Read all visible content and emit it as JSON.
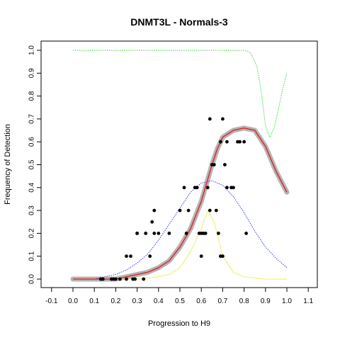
{
  "chart_data": {
    "type": "scatter",
    "title": "DNMT3L - Normals-3",
    "xlabel": "Progression to H9",
    "ylabel": "Frequency of Detection",
    "xlim": [
      -0.1,
      1.1
    ],
    "ylim": [
      0.0,
      1.0
    ],
    "x_ticks": [
      "-0.1",
      "0.0",
      "0.1",
      "0.2",
      "0.3",
      "0.4",
      "0.5",
      "0.6",
      "0.7",
      "0.8",
      "0.9",
      "1.0",
      "1.1"
    ],
    "y_ticks": [
      "0.0",
      "0.1",
      "0.2",
      "0.3",
      "0.4",
      "0.5",
      "0.6",
      "0.7",
      "0.8",
      "0.9",
      "1.0"
    ],
    "grid": false,
    "legend": "none",
    "colors": {
      "points": "#000000",
      "gray_band": "#b4b4b4",
      "red_fit": "#e41a1c",
      "blue_density": "#3333ff",
      "yellow_density": "#eeee66",
      "green_curve": "#33dd33"
    },
    "series": [
      {
        "type": "scatter",
        "x": [
          0.13,
          0.14,
          0.18,
          0.19,
          0.2,
          0.22,
          0.25,
          0.27,
          0.29,
          0.3,
          0.33,
          0.25,
          0.28,
          0.34,
          0.38,
          0.36,
          0.3,
          0.38,
          0.37,
          0.4,
          0.45,
          0.5,
          0.52,
          0.54,
          0.53,
          0.57,
          0.58,
          0.6,
          0.59,
          0.61,
          0.62,
          0.65,
          0.66,
          0.6,
          0.63,
          0.64,
          0.67,
          0.68,
          0.69,
          0.7,
          0.72,
          0.71,
          0.74,
          0.75,
          0.77,
          0.8,
          0.81,
          0.72,
          0.7,
          0.69,
          0.64,
          0.78
        ],
        "y": [
          0.0,
          0.0,
          0.0,
          0.0,
          0.0,
          0.0,
          0.1,
          0.1,
          0.0,
          0.2,
          0.0,
          0.0,
          0.0,
          0.2,
          0.3,
          0.1,
          0.2,
          0.2,
          0.25,
          0.2,
          0.2,
          0.3,
          0.4,
          0.3,
          0.2,
          0.4,
          0.4,
          0.2,
          0.2,
          0.2,
          0.2,
          0.5,
          0.5,
          0.1,
          0.4,
          0.3,
          0.3,
          0.2,
          0.1,
          0.1,
          0.4,
          0.5,
          0.4,
          0.4,
          0.6,
          0.6,
          0.2,
          0.6,
          0.7,
          0.6,
          0.7,
          0.6
        ]
      },
      {
        "type": "line",
        "x": [
          0.0,
          0.05,
          0.1,
          0.15,
          0.2,
          0.25,
          0.3,
          0.35,
          0.4,
          0.45,
          0.5,
          0.55,
          0.6,
          0.625,
          0.65,
          0.675,
          0.7,
          0.75,
          0.8,
          0.85,
          0.9,
          0.95,
          1.0
        ],
        "y": [
          0.0,
          0.0,
          0.0,
          0.0,
          0.0,
          0.01,
          0.02,
          0.03,
          0.05,
          0.08,
          0.14,
          0.22,
          0.34,
          0.42,
          0.5,
          0.57,
          0.62,
          0.65,
          0.66,
          0.65,
          0.58,
          0.47,
          0.38
        ]
      },
      {
        "type": "line",
        "x": [
          0.0,
          0.05,
          0.1,
          0.15,
          0.2,
          0.25,
          0.3,
          0.35,
          0.4,
          0.45,
          0.5,
          0.55,
          0.6,
          0.65,
          0.7,
          0.75,
          0.8,
          0.85,
          0.9,
          0.95,
          1.0
        ],
        "y": [
          0.0,
          0.0,
          0.0,
          0.01,
          0.02,
          0.04,
          0.07,
          0.11,
          0.17,
          0.24,
          0.31,
          0.38,
          0.42,
          0.43,
          0.41,
          0.36,
          0.29,
          0.21,
          0.14,
          0.09,
          0.05
        ]
      },
      {
        "type": "line",
        "x": [
          0.0,
          0.3,
          0.4,
          0.45,
          0.5,
          0.55,
          0.6,
          0.63,
          0.66,
          0.7,
          0.75,
          0.8,
          0.9,
          1.0
        ],
        "y": [
          0.0,
          0.0,
          0.01,
          0.02,
          0.05,
          0.12,
          0.22,
          0.3,
          0.25,
          0.1,
          0.03,
          0.01,
          0.0,
          0.0
        ]
      },
      {
        "type": "line",
        "x": [
          0.0,
          0.2,
          0.4,
          0.6,
          0.7,
          0.75,
          0.8,
          0.83,
          0.86,
          0.88,
          0.9,
          0.92,
          0.94,
          0.96,
          0.98,
          1.0
        ],
        "y": [
          1.0,
          1.0,
          1.0,
          1.0,
          1.0,
          1.0,
          1.0,
          0.99,
          0.93,
          0.82,
          0.67,
          0.62,
          0.66,
          0.74,
          0.83,
          0.9
        ]
      }
    ]
  }
}
